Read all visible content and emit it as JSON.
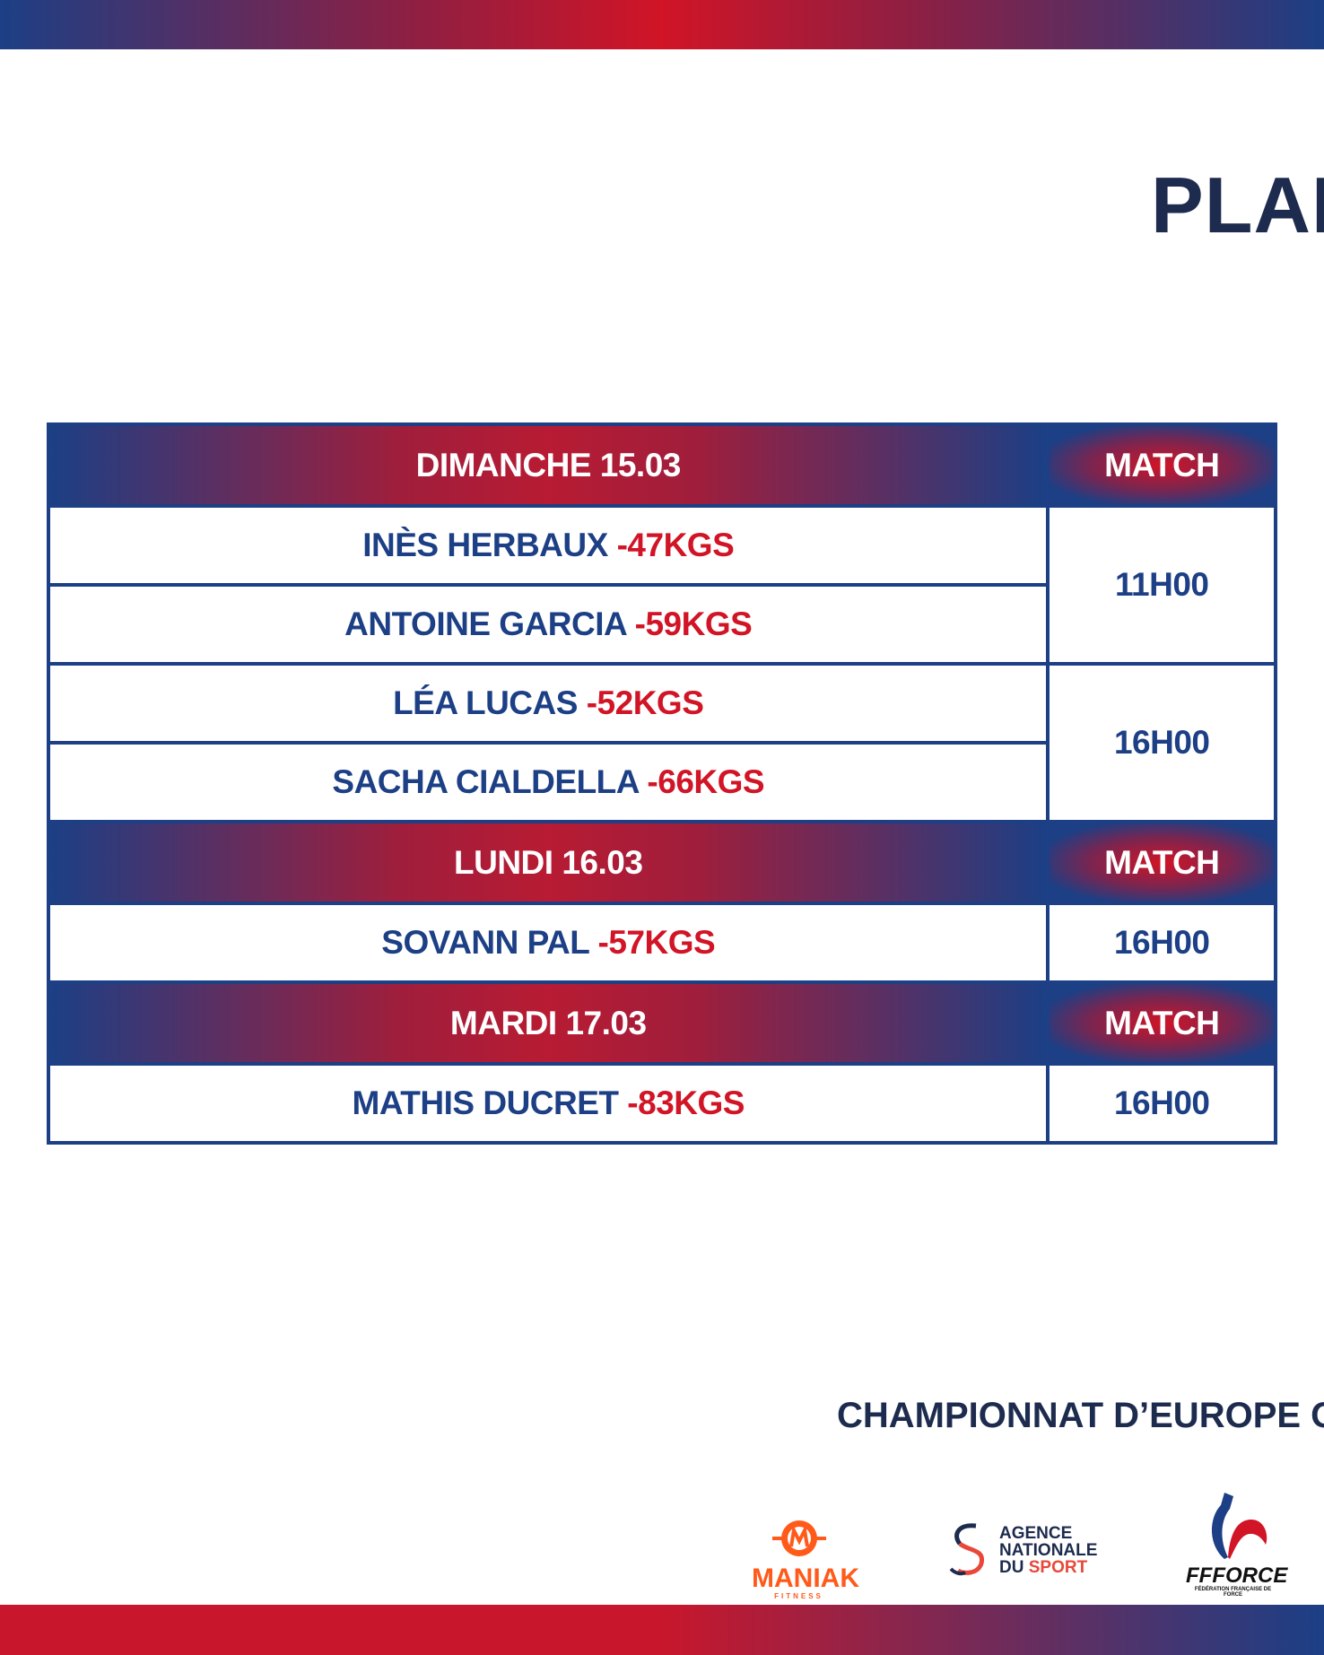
{
  "title": "PLAN",
  "table": {
    "sections": [
      {
        "day": "DIMANCHE 15.03",
        "match_label": "MATCH",
        "rows": [
          {
            "name": "INÈS HERBAUX",
            "weight": "-47KGS"
          },
          {
            "name": "ANTOINE GARCIA",
            "weight": "-59KGS"
          },
          {
            "name": "LÉA LUCAS",
            "weight": "-52KGS"
          },
          {
            "name": "SACHA CIALDELLA",
            "weight": "-66KGS"
          }
        ],
        "times": [
          "11H00",
          "16H00"
        ]
      },
      {
        "day": "LUNDI 16.03",
        "match_label": "MATCH",
        "rows": [
          {
            "name": "SOVANN PAL",
            "weight": "-57KGS"
          }
        ],
        "times": [
          "16H00"
        ]
      },
      {
        "day": "MARDI 17.03",
        "match_label": "MATCH",
        "rows": [
          {
            "name": "MATHIS DUCRET",
            "weight": "-83KGS"
          }
        ],
        "times": [
          "16H00"
        ]
      }
    ]
  },
  "footer": {
    "event": "CHAMPIONNAT D’EUROPE OPE",
    "logos": {
      "maniak": {
        "line1": "MANIAK",
        "line2": "FITNESS"
      },
      "ans": {
        "line1": "AGENCE",
        "line2": "NATIONALE",
        "line3a": "DU ",
        "line3b": "SPORT"
      },
      "ffforce": {
        "line1": "FFFORCE",
        "line2": "FÉDÉRATION FRANÇAISE DE FORCE"
      }
    }
  },
  "colors": {
    "navy": "#1c3f85",
    "red": "#d11426",
    "dark": "#1d2b4e",
    "orange": "#ff5a1a"
  }
}
